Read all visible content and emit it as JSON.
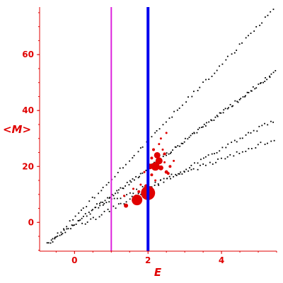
{
  "chart_data": {
    "type": "scatter",
    "xlabel": "E",
    "ylabel": "<M>",
    "xlim": [
      -0.95,
      5.5
    ],
    "ylim": [
      -10.3,
      77
    ],
    "x_ticks": [
      0,
      2,
      4
    ],
    "x_tick_labels": [
      "0",
      "2",
      "4"
    ],
    "y_ticks": [
      0,
      20,
      40,
      60
    ],
    "y_tick_labels": [
      "0",
      "20",
      "40",
      "60"
    ],
    "grid": false,
    "legend": "none",
    "vertical_lines": [
      {
        "x": 1.0,
        "color": "#dd22dd",
        "width": "thin"
      },
      {
        "x": 2.0,
        "color": "#0000ee",
        "width": "thick"
      }
    ],
    "series": [
      {
        "color": "#000000",
        "marker": "dot",
        "bands": [
          {
            "x_start": -0.75,
            "x_end": 5.5,
            "y_start": -8,
            "y_end": 54,
            "points": 150
          },
          {
            "x_start": -0.6,
            "x_end": 5.5,
            "y_start": -6.5,
            "y_end": 77,
            "points": 80
          },
          {
            "x_start": 0.2,
            "x_end": 5.5,
            "y_start": -1,
            "y_end": 37,
            "points": 70
          },
          {
            "x_start": 0.6,
            "x_end": 5.5,
            "y_start": 6,
            "y_end": 30,
            "points": 60
          }
        ]
      },
      {
        "color": "#e00000",
        "marker": "circle",
        "points": [
          {
            "x": 2.0,
            "y": 10.5,
            "size": 10
          },
          {
            "x": 1.7,
            "y": 8,
            "size": 7.5
          },
          {
            "x": 2.2,
            "y": 20,
            "size": 6
          },
          {
            "x": 2.3,
            "y": 22,
            "size": 5
          },
          {
            "x": 2.25,
            "y": 24,
            "size": 4.5
          },
          {
            "x": 2.05,
            "y": 20,
            "size": 4
          },
          {
            "x": 2.35,
            "y": 19.5,
            "size": 3.5
          },
          {
            "x": 1.4,
            "y": 6,
            "size": 3
          },
          {
            "x": 1.95,
            "y": 13,
            "size": 2.5
          },
          {
            "x": 2.5,
            "y": 18,
            "size": 2.5
          },
          {
            "x": 2.6,
            "y": 20,
            "size": 2
          },
          {
            "x": 2.15,
            "y": 26,
            "size": 2
          },
          {
            "x": 2.45,
            "y": 24.5,
            "size": 2
          },
          {
            "x": 1.75,
            "y": 11,
            "size": 2
          },
          {
            "x": 2.1,
            "y": 23,
            "size": 2
          },
          {
            "x": 2.4,
            "y": 26,
            "size": 1.5
          },
          {
            "x": 2.55,
            "y": 17.5,
            "size": 2
          },
          {
            "x": 2.1,
            "y": 17,
            "size": 2
          },
          {
            "x": 2.3,
            "y": 28,
            "size": 1.5
          },
          {
            "x": 2.5,
            "y": 32,
            "size": 1.5
          },
          {
            "x": 2.0,
            "y": 28,
            "size": 1.5
          },
          {
            "x": 1.8,
            "y": 13.5,
            "size": 1.5
          },
          {
            "x": 2.7,
            "y": 22,
            "size": 1.5
          },
          {
            "x": 1.9,
            "y": 18,
            "size": 1.5
          },
          {
            "x": 2.2,
            "y": 15,
            "size": 1.5
          },
          {
            "x": 2.45,
            "y": 21.5,
            "size": 1.5
          },
          {
            "x": 1.35,
            "y": 9.5,
            "size": 1.5
          },
          {
            "x": 1.6,
            "y": 12,
            "size": 1.5
          },
          {
            "x": 2.35,
            "y": 30,
            "size": 1.5
          },
          {
            "x": 2.0,
            "y": 24,
            "size": 1.5
          }
        ]
      }
    ]
  }
}
